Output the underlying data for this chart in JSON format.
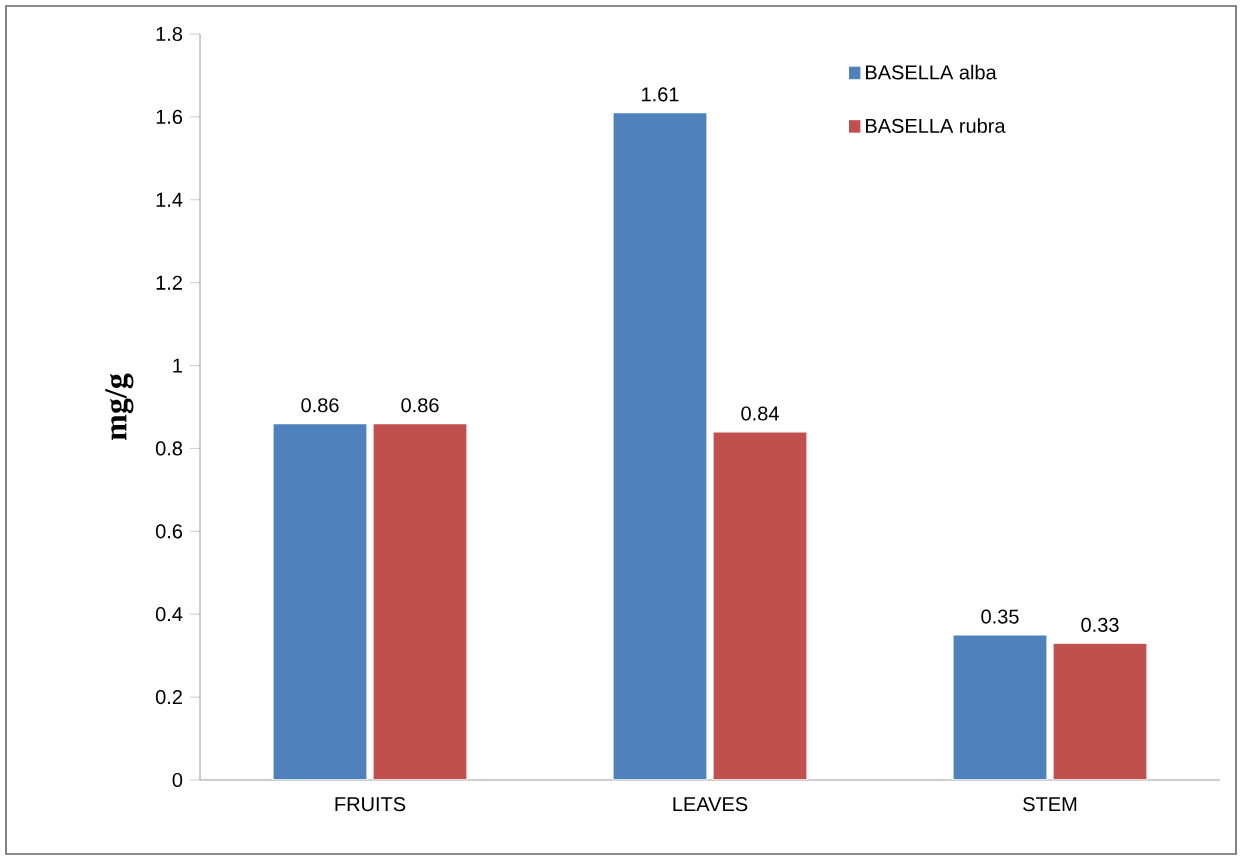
{
  "chart_data": {
    "type": "bar",
    "ylabel": "mg/g",
    "categories": [
      "FRUITS",
      "LEAVES",
      "STEM"
    ],
    "series": [
      {
        "name": "BASELLA alba",
        "color": "#4f81bd",
        "values": [
          0.86,
          1.61,
          0.35
        ]
      },
      {
        "name": "BASELLA rubra",
        "color": "#c0504d",
        "values": [
          0.86,
          0.84,
          0.33
        ]
      }
    ],
    "ylim": [
      0,
      1.8
    ],
    "yticks": [
      0,
      0.2,
      0.4,
      0.6,
      0.8,
      1,
      1.2,
      1.4,
      1.6,
      1.8
    ],
    "data_labels": true,
    "legend": "top right",
    "grid": false
  }
}
